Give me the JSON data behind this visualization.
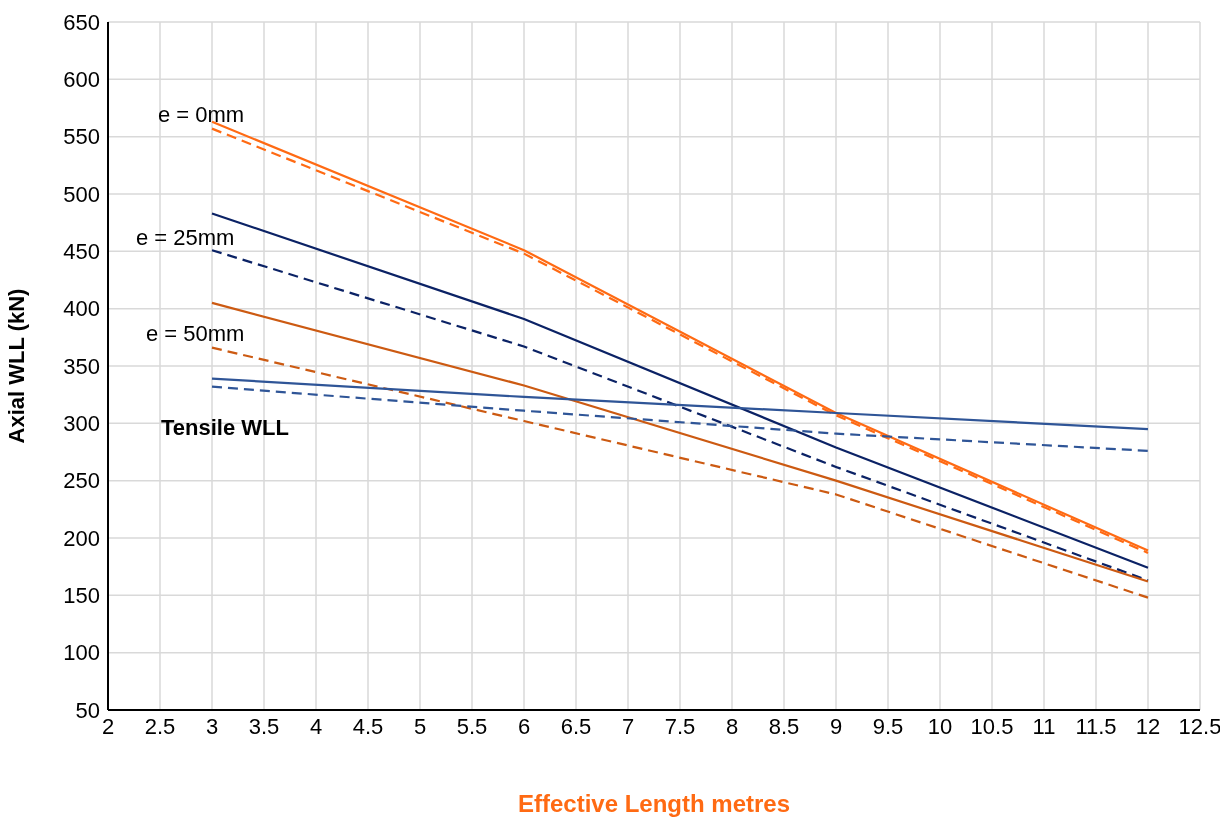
{
  "chart_data": {
    "type": "line",
    "xlabel": "Effective Length metres",
    "ylabel": "Axial WLL (kN)",
    "x": [
      3,
      6,
      9,
      12
    ],
    "series": [
      {
        "color": "#ff6a13",
        "line_style": "solid",
        "values": [
          563,
          451,
          309,
          189
        ]
      },
      {
        "color": "#ff6a13",
        "line_style": "dashed",
        "values": [
          557,
          448,
          307,
          187
        ]
      },
      {
        "color": "#0b2265",
        "line_style": "solid",
        "values": [
          483,
          391,
          279,
          174
        ]
      },
      {
        "color": "#0b2265",
        "line_style": "dashed",
        "values": [
          451,
          367,
          262,
          163
        ]
      },
      {
        "color": "#cc5a12",
        "line_style": "solid",
        "values": [
          405,
          333,
          250,
          162
        ]
      },
      {
        "color": "#cc5a12",
        "line_style": "dashed",
        "values": [
          366,
          302,
          238,
          148
        ]
      },
      {
        "color": "#2f5597",
        "line_style": "solid",
        "values": [
          339,
          323,
          309,
          295
        ]
      },
      {
        "color": "#2f5597",
        "line_style": "dashed",
        "values": [
          332,
          311,
          291,
          276
        ]
      }
    ],
    "annotations": [
      "e = 0mm",
      "e = 25mm",
      "e = 50mm",
      "Tensile WLL"
    ],
    "xlim": [
      2,
      12.5
    ],
    "xticks": [
      2,
      2.5,
      3,
      3.5,
      4,
      4.5,
      5,
      5.5,
      6,
      6.5,
      7,
      7.5,
      8,
      8.5,
      9,
      9.5,
      10,
      10.5,
      11,
      11.5,
      12,
      12.5
    ],
    "ylim": [
      50,
      650
    ],
    "yticks": [
      50,
      100,
      150,
      200,
      250,
      300,
      350,
      400,
      450,
      500,
      550,
      600,
      650
    ],
    "grid": true,
    "legend": false,
    "marker": "none"
  }
}
